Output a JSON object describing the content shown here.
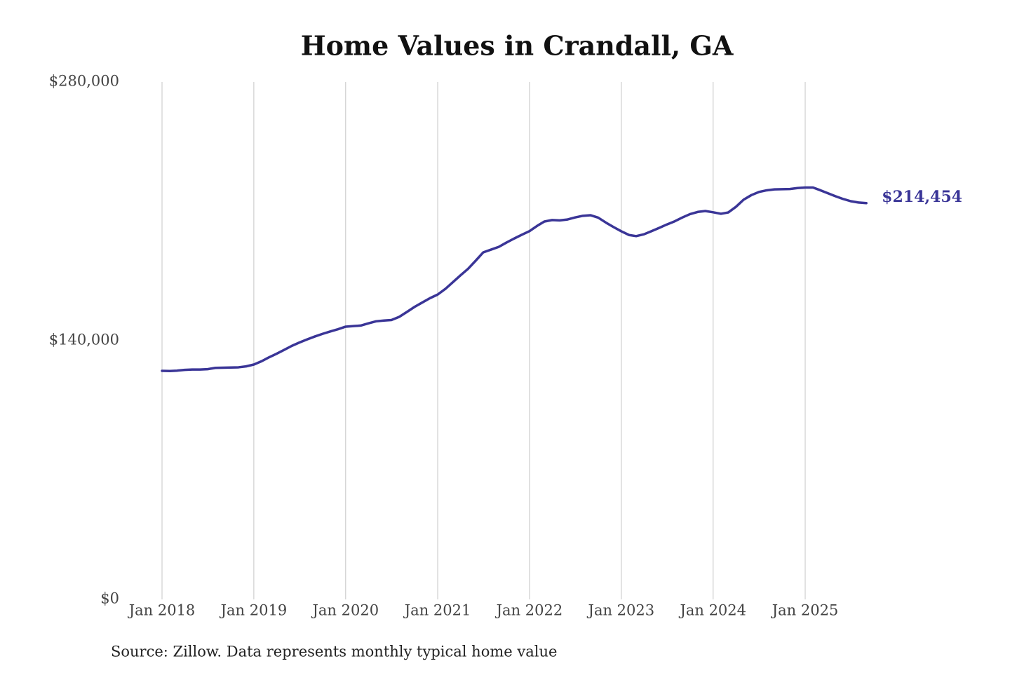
{
  "chart_data": {
    "type": "line",
    "title": "Home Values in Crandall, GA",
    "source": "Source: Zillow. Data represents monthly typical home value",
    "x": [
      "Jan 2018",
      "Feb 2018",
      "Mar 2018",
      "Apr 2018",
      "May 2018",
      "Jun 2018",
      "Jul 2018",
      "Aug 2018",
      "Sep 2018",
      "Oct 2018",
      "Nov 2018",
      "Dec 2018",
      "Jan 2019",
      "Feb 2019",
      "Mar 2019",
      "Apr 2019",
      "May 2019",
      "Jun 2019",
      "Jul 2019",
      "Aug 2019",
      "Sep 2019",
      "Oct 2019",
      "Nov 2019",
      "Dec 2019",
      "Jan 2020",
      "Feb 2020",
      "Mar 2020",
      "Apr 2020",
      "May 2020",
      "Jun 2020",
      "Jul 2020",
      "Aug 2020",
      "Sep 2020",
      "Oct 2020",
      "Nov 2020",
      "Dec 2020",
      "Jan 2021",
      "Feb 2021",
      "Mar 2021",
      "Apr 2021",
      "May 2021",
      "Jun 2021",
      "Jul 2021",
      "Aug 2021",
      "Sep 2021",
      "Oct 2021",
      "Nov 2021",
      "Dec 2021",
      "Jan 2022",
      "Feb 2022",
      "Mar 2022",
      "Apr 2022",
      "May 2022",
      "Jun 2022",
      "Jul 2022",
      "Aug 2022",
      "Sep 2022",
      "Oct 2022",
      "Nov 2022",
      "Dec 2022",
      "Jan 2023",
      "Feb 2023",
      "Mar 2023",
      "Apr 2023",
      "May 2023",
      "Jun 2023",
      "Jul 2023",
      "Aug 2023",
      "Sep 2023",
      "Oct 2023",
      "Nov 2023",
      "Dec 2023",
      "Jan 2024",
      "Feb 2024",
      "Mar 2024",
      "Apr 2024",
      "May 2024",
      "Jun 2024",
      "Jul 2024",
      "Aug 2024",
      "Sep 2024",
      "Oct 2024",
      "Nov 2024",
      "Dec 2024",
      "Jan 2025",
      "Feb 2025",
      "Mar 2025",
      "Apr 2025",
      "May 2025",
      "Jun 2025",
      "Jul 2025",
      "Aug 2025",
      "Sep 2025"
    ],
    "series": [
      {
        "name": "Home value",
        "color": "#3a3597",
        "values": [
          123700,
          123600,
          123800,
          124200,
          124400,
          124400,
          124600,
          125300,
          125400,
          125500,
          125600,
          126100,
          127100,
          128900,
          130900,
          132900,
          135000,
          137200,
          139000,
          140700,
          142300,
          143700,
          145000,
          146200,
          147600,
          147900,
          148200,
          149400,
          150500,
          150900,
          151200,
          152900,
          155600,
          158300,
          160700,
          163000,
          165000,
          168100,
          171500,
          175300,
          178800,
          183300,
          187800,
          189300,
          190800,
          193100,
          195300,
          197300,
          199300,
          202200,
          204500,
          205300,
          205100,
          205600,
          206700,
          207600,
          207900,
          206600,
          203900,
          201500,
          199200,
          197200,
          196600,
          197600,
          199300,
          201100,
          202900,
          204600,
          206700,
          208500,
          209700,
          210200,
          209500,
          208700,
          209400,
          212500,
          216300,
          218800,
          220500,
          221400,
          221900,
          222000,
          222100,
          222600,
          222900,
          222900,
          221500,
          219800,
          218200,
          216700,
          215500,
          214800,
          214454
        ]
      }
    ],
    "annotation": {
      "x": "Sep 2025",
      "value": 214454,
      "label": "$214,454"
    },
    "ylim": [
      0,
      280000
    ],
    "yticks": [
      {
        "value": 0,
        "label": "$0"
      },
      {
        "value": 140000,
        "label": "$140,000"
      },
      {
        "value": 280000,
        "label": "$280,000"
      }
    ],
    "xticks": [
      "Jan 2018",
      "Jan 2019",
      "Jan 2020",
      "Jan 2021",
      "Jan 2022",
      "Jan 2023",
      "Jan 2024",
      "Jan 2025"
    ],
    "grid": "x"
  }
}
